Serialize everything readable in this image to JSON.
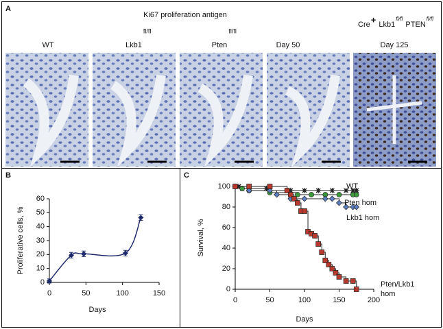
{
  "panel_a": {
    "panel_label": "A",
    "title": "Ki67 proliferation antigen",
    "group_header": [
      {
        "text": "Cre",
        "sup": "+"
      },
      {
        "text": "Lkb1",
        "sup": "fl/fl"
      },
      {
        "text": "PTEN",
        "sup": "fl/fl"
      }
    ],
    "columns": [
      {
        "text": "WT"
      },
      {
        "text": "Lkb1",
        "sup": "fl/fl"
      },
      {
        "text": "Pten",
        "sup": "fl/fl"
      },
      {
        "text": "Day 50"
      },
      {
        "text": "Day 125"
      }
    ]
  },
  "chart_data": [
    {
      "type": "line",
      "panel_label": "B",
      "x_label": "Days",
      "y_label": "Proliferative cells, %",
      "x": [
        0,
        30,
        47,
        104,
        125
      ],
      "values": [
        1,
        19.5,
        20.5,
        21,
        46.5
      ],
      "errors": [
        1.5,
        2,
        2,
        2,
        2
      ],
      "color": "#1f2a6b",
      "smooth": true,
      "xlim": [
        0,
        150
      ],
      "xticks": [
        0,
        50,
        100,
        150
      ],
      "ylim": [
        0,
        60
      ],
      "yticks": [
        0,
        10,
        20,
        30,
        40,
        50,
        60
      ]
    },
    {
      "type": "survival",
      "panel_label": "C",
      "x_label": "Days",
      "y_label": "Survival, %",
      "xlim": [
        0,
        200
      ],
      "xticks": [
        0,
        50,
        100,
        150,
        200
      ],
      "ylim": [
        0,
        100
      ],
      "yticks": [
        0,
        20,
        40,
        60,
        80,
        100
      ],
      "series": [
        {
          "name": "WT",
          "color": "#222222",
          "marker": "asterisk",
          "x": [
            0,
            5,
            10,
            45,
            50,
            75,
            80,
            100,
            120,
            140,
            160,
            170,
            175
          ],
          "values": [
            100,
            100,
            98,
            98,
            96,
            96,
            96,
            96,
            96,
            96,
            96,
            96,
            96
          ]
        },
        {
          "name": "Pten hom",
          "color": "#3c9a3c",
          "marker": "circle",
          "x": [
            0,
            10,
            20,
            50,
            90,
            110,
            130,
            150,
            170,
            175
          ],
          "values": [
            100,
            98,
            96,
            94,
            92,
            92,
            92,
            92,
            92,
            92
          ]
        },
        {
          "name": "Lkb1 hom",
          "color": "#5b7fc0",
          "marker": "diamond",
          "x": [
            0,
            20,
            50,
            60,
            80,
            100,
            130,
            140,
            150,
            160,
            170,
            175
          ],
          "values": [
            100,
            96,
            96,
            92,
            88,
            88,
            88,
            88,
            84,
            80,
            80,
            80
          ]
        },
        {
          "name": "Pten/Lkb1 hom",
          "color": "#b83a2e",
          "marker": "square",
          "x": [
            0,
            20,
            50,
            75,
            80,
            85,
            90,
            95,
            100,
            105,
            110,
            115,
            120,
            125,
            130,
            135,
            140,
            145,
            150,
            160,
            170,
            175
          ],
          "values": [
            100,
            100,
            100,
            96,
            92,
            88,
            84,
            76,
            76,
            56,
            54,
            52,
            44,
            36,
            28,
            24,
            20,
            16,
            12,
            8,
            8,
            0
          ]
        }
      ]
    }
  ]
}
